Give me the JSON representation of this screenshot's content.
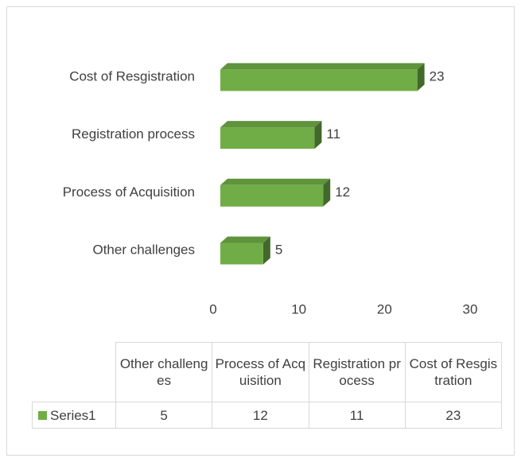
{
  "chart_data": {
    "type": "bar",
    "orientation": "horizontal",
    "categories": [
      "Other challenges",
      "Process of Acquisition",
      "Registration process",
      "Cost of Resgistration"
    ],
    "series": [
      {
        "name": "Series1",
        "color": "#70ad47",
        "values": [
          5,
          12,
          11,
          23
        ]
      }
    ],
    "xlim": [
      0,
      30
    ],
    "xticks": [
      0,
      10,
      20,
      30
    ],
    "data_labels": true,
    "data_table": true
  }
}
